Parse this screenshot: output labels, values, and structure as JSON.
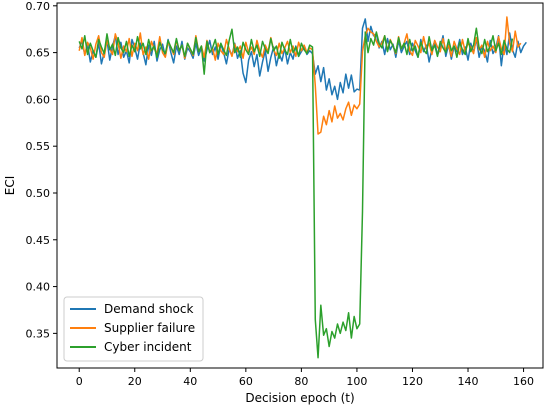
{
  "chart_data": {
    "type": "line",
    "title": "",
    "xlabel": "Decision epoch (t)",
    "ylabel": "ECI",
    "xlim": [
      -8,
      167
    ],
    "ylim": [
      0.313,
      0.703
    ],
    "x_ticks": [
      0,
      20,
      40,
      60,
      80,
      100,
      120,
      140,
      160
    ],
    "y_ticks": [
      0.35,
      0.4,
      0.45,
      0.5,
      0.55,
      0.6,
      0.65,
      0.7
    ],
    "grid": false,
    "legend_position": "lower-left",
    "series": [
      {
        "name": "Demand shock",
        "color": "#1f77b4",
        "values": [
          0.655,
          0.662,
          0.648,
          0.659,
          0.64,
          0.652,
          0.645,
          0.66,
          0.638,
          0.65,
          0.663,
          0.642,
          0.657,
          0.668,
          0.648,
          0.661,
          0.645,
          0.652,
          0.639,
          0.664,
          0.655,
          0.643,
          0.66,
          0.65,
          0.637,
          0.658,
          0.647,
          0.662,
          0.641,
          0.653,
          0.659,
          0.646,
          0.664,
          0.65,
          0.639,
          0.657,
          0.648,
          0.662,
          0.643,
          0.655,
          0.651,
          0.644,
          0.66,
          0.647,
          0.655,
          0.641,
          0.653,
          0.663,
          0.648,
          0.656,
          0.643,
          0.659,
          0.65,
          0.638,
          0.654,
          0.647,
          0.66,
          0.644,
          0.652,
          0.628,
          0.618,
          0.642,
          0.651,
          0.635,
          0.648,
          0.625,
          0.64,
          0.652,
          0.63,
          0.645,
          0.656,
          0.636,
          0.649,
          0.641,
          0.655,
          0.638,
          0.65,
          0.643,
          0.657,
          0.646,
          0.651,
          0.656,
          0.648,
          0.652,
          0.649,
          0.627,
          0.636,
          0.619,
          0.634,
          0.61,
          0.622,
          0.605,
          0.614,
          0.6,
          0.618,
          0.607,
          0.627,
          0.612,
          0.626,
          0.608,
          0.611,
          0.61,
          0.676,
          0.686,
          0.662,
          0.678,
          0.668,
          0.67,
          0.655,
          0.662,
          0.648,
          0.665,
          0.653,
          0.659,
          0.645,
          0.663,
          0.65,
          0.657,
          0.662,
          0.648,
          0.66,
          0.652,
          0.645,
          0.664,
          0.651,
          0.658,
          0.64,
          0.654,
          0.662,
          0.647,
          0.655,
          0.668,
          0.646,
          0.659,
          0.643,
          0.657,
          0.651,
          0.664,
          0.648,
          0.656,
          0.642,
          0.66,
          0.65,
          0.665,
          0.645,
          0.657,
          0.652,
          0.64,
          0.663,
          0.649,
          0.655,
          0.668,
          0.636,
          0.66,
          0.648,
          0.671,
          0.653,
          0.645,
          0.662,
          0.65,
          0.657,
          0.661
        ]
      },
      {
        "name": "Supplier failure",
        "color": "#ff7f0e",
        "values": [
          0.652,
          0.666,
          0.647,
          0.661,
          0.655,
          0.643,
          0.659,
          0.668,
          0.65,
          0.645,
          0.663,
          0.654,
          0.648,
          0.67,
          0.66,
          0.644,
          0.657,
          0.651,
          0.665,
          0.646,
          0.66,
          0.652,
          0.671,
          0.648,
          0.656,
          0.643,
          0.662,
          0.654,
          0.649,
          0.667,
          0.65,
          0.645,
          0.661,
          0.656,
          0.648,
          0.663,
          0.652,
          0.658,
          0.644,
          0.66,
          0.653,
          0.647,
          0.668,
          0.651,
          0.657,
          0.645,
          0.663,
          0.65,
          0.655,
          0.642,
          0.66,
          0.652,
          0.648,
          0.664,
          0.654,
          0.646,
          0.659,
          0.651,
          0.657,
          0.644,
          0.661,
          0.65,
          0.656,
          0.648,
          0.663,
          0.652,
          0.645,
          0.658,
          0.651,
          0.666,
          0.653,
          0.647,
          0.66,
          0.649,
          0.655,
          0.662,
          0.65,
          0.657,
          0.646,
          0.661,
          0.652,
          0.658,
          0.65,
          0.655,
          0.653,
          0.615,
          0.563,
          0.565,
          0.582,
          0.573,
          0.588,
          0.576,
          0.593,
          0.58,
          0.585,
          0.578,
          0.59,
          0.597,
          0.583,
          0.594,
          0.59,
          0.595,
          0.651,
          0.668,
          0.676,
          0.672,
          0.67,
          0.662,
          0.656,
          0.66,
          0.668,
          0.652,
          0.664,
          0.657,
          0.649,
          0.667,
          0.654,
          0.66,
          0.67,
          0.652,
          0.647,
          0.663,
          0.657,
          0.65,
          0.667,
          0.654,
          0.66,
          0.648,
          0.663,
          0.656,
          0.651,
          0.665,
          0.652,
          0.658,
          0.646,
          0.662,
          0.654,
          0.648,
          0.664,
          0.651,
          0.66,
          0.656,
          0.649,
          0.666,
          0.653,
          0.658,
          0.645,
          0.662,
          0.652,
          0.657,
          0.65,
          0.667,
          0.654,
          0.648,
          0.688,
          0.66,
          0.651,
          0.673,
          0.656,
          0.66
        ]
      },
      {
        "name": "Cyber incident",
        "color": "#2ca02c",
        "values": [
          0.662,
          0.654,
          0.668,
          0.648,
          0.66,
          0.652,
          0.645,
          0.664,
          0.656,
          0.649,
          0.67,
          0.653,
          0.659,
          0.647,
          0.666,
          0.655,
          0.65,
          0.662,
          0.646,
          0.658,
          0.651,
          0.667,
          0.654,
          0.66,
          0.648,
          0.664,
          0.652,
          0.657,
          0.645,
          0.661,
          0.653,
          0.649,
          0.663,
          0.656,
          0.65,
          0.665,
          0.652,
          0.658,
          0.646,
          0.66,
          0.654,
          0.648,
          0.666,
          0.651,
          0.657,
          0.627,
          0.662,
          0.65,
          0.655,
          0.664,
          0.648,
          0.66,
          0.653,
          0.647,
          0.663,
          0.675,
          0.65,
          0.656,
          0.645,
          0.661,
          0.653,
          0.648,
          0.664,
          0.651,
          0.658,
          0.646,
          0.662,
          0.654,
          0.649,
          0.665,
          0.652,
          0.657,
          0.644,
          0.661,
          0.653,
          0.648,
          0.664,
          0.65,
          0.656,
          0.646,
          0.66,
          0.653,
          0.649,
          0.658,
          0.656,
          0.365,
          0.324,
          0.38,
          0.348,
          0.355,
          0.336,
          0.352,
          0.345,
          0.36,
          0.35,
          0.362,
          0.353,
          0.372,
          0.345,
          0.368,
          0.355,
          0.36,
          0.48,
          0.672,
          0.65,
          0.665,
          0.658,
          0.672,
          0.66,
          0.655,
          0.668,
          0.651,
          0.663,
          0.657,
          0.65,
          0.666,
          0.654,
          0.66,
          0.648,
          0.664,
          0.652,
          0.657,
          0.645,
          0.661,
          0.653,
          0.649,
          0.667,
          0.652,
          0.658,
          0.646,
          0.662,
          0.655,
          0.65,
          0.664,
          0.652,
          0.657,
          0.645,
          0.661,
          0.653,
          0.648,
          0.665,
          0.651,
          0.658,
          0.676,
          0.655,
          0.649,
          0.664,
          0.651,
          0.657,
          0.668,
          0.652,
          0.66,
          0.648,
          0.663,
          0.654,
          0.65,
          0.665
        ]
      }
    ]
  }
}
